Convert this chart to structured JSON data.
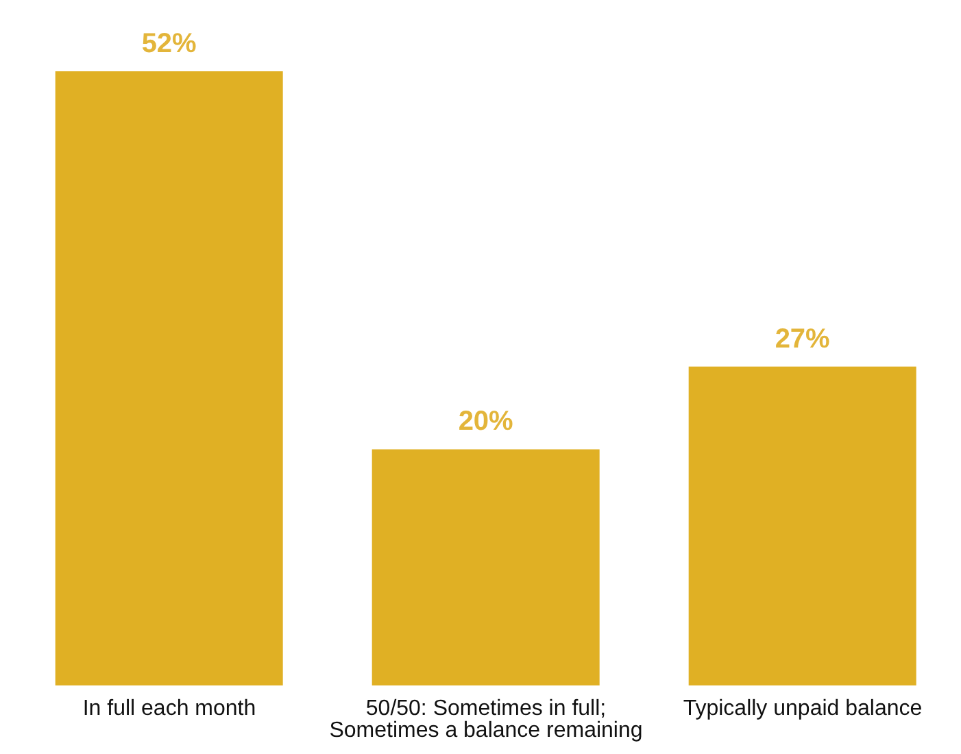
{
  "chart_data": {
    "type": "bar",
    "categories": [
      "In full each month",
      "50/50: Sometimes in full; Sometimes a balance remaining",
      "Typically unpaid balance"
    ],
    "values": [
      52,
      20,
      27
    ],
    "color": "#e0b024",
    "value_labels": [
      "52%",
      "20%",
      "27%"
    ],
    "grid": false,
    "legend": false
  }
}
